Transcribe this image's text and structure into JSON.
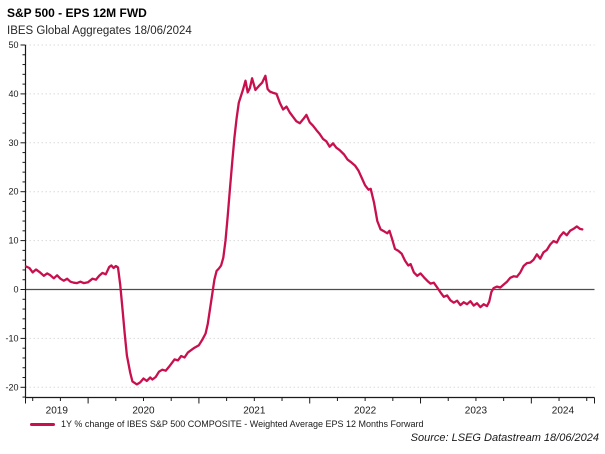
{
  "header": {
    "title": "S&P 500 - EPS 12M FWD",
    "subtitle": "IBES Global Aggregates 18/06/2024"
  },
  "legend": {
    "label": "1Y % change of IBES S&P 500 COMPOSITE - Weighted Average EPS 12 Months Forward"
  },
  "source": {
    "text": "Source: LSEG Datastream 18/06/2024"
  },
  "colors": {
    "line": "#C8104E",
    "grid": "#d9d9d9",
    "zero_line": "#4d4d4d",
    "axis": "#1a1a1a",
    "tick_text": "#1a1a1a"
  },
  "chart_data": {
    "type": "line",
    "title": "S&P 500 - EPS 12M FWD",
    "subtitle": "IBES Global Aggregates 18/06/2024",
    "grid": "horizontal-dotted",
    "legend_position": "bottom-left",
    "x_axis": {
      "domain": [
        2019.435,
        2024.57
      ],
      "year_labels": [
        "2019",
        "2020",
        "2021",
        "2022",
        "2023",
        "2024"
      ],
      "minor_tick_interval_years": 0.25
    },
    "y_axis": {
      "label_ticks": [
        50,
        40,
        30,
        20,
        10,
        0,
        -10,
        -20
      ],
      "minor_tick_interval": 2,
      "top_value": 50,
      "bottom_value": -22.1,
      "zero_line_solid": true
    },
    "series": [
      {
        "name": "1Y % change of IBES S&P 500 COMPOSITE - Weighted Average EPS 12 Months Forward",
        "color": "#C8104E",
        "points": [
          [
            2019.44,
            4.7
          ],
          [
            2019.47,
            4.4
          ],
          [
            2019.5,
            3.5
          ],
          [
            2019.53,
            4.1
          ],
          [
            2019.56,
            3.6
          ],
          [
            2019.6,
            2.8
          ],
          [
            2019.63,
            3.3
          ],
          [
            2019.66,
            2.9
          ],
          [
            2019.69,
            2.3
          ],
          [
            2019.72,
            2.9
          ],
          [
            2019.75,
            2.2
          ],
          [
            2019.78,
            1.8
          ],
          [
            2019.81,
            2.2
          ],
          [
            2019.84,
            1.6
          ],
          [
            2019.87,
            1.4
          ],
          [
            2019.9,
            1.3
          ],
          [
            2019.93,
            1.6
          ],
          [
            2019.96,
            1.3
          ],
          [
            2020.0,
            1.5
          ],
          [
            2020.04,
            2.2
          ],
          [
            2020.07,
            2.0
          ],
          [
            2020.1,
            2.8
          ],
          [
            2020.13,
            3.4
          ],
          [
            2020.16,
            3.1
          ],
          [
            2020.19,
            4.6
          ],
          [
            2020.21,
            4.9
          ],
          [
            2020.23,
            4.4
          ],
          [
            2020.25,
            4.8
          ],
          [
            2020.27,
            4.5
          ],
          [
            2020.29,
            1.0
          ],
          [
            2020.31,
            -4.0
          ],
          [
            2020.33,
            -9.0
          ],
          [
            2020.35,
            -13.5
          ],
          [
            2020.38,
            -17.0
          ],
          [
            2020.4,
            -18.8
          ],
          [
            2020.44,
            -19.4
          ],
          [
            2020.47,
            -19.0
          ],
          [
            2020.5,
            -18.2
          ],
          [
            2020.53,
            -18.7
          ],
          [
            2020.56,
            -18.0
          ],
          [
            2020.58,
            -18.4
          ],
          [
            2020.61,
            -17.9
          ],
          [
            2020.64,
            -16.8
          ],
          [
            2020.67,
            -16.4
          ],
          [
            2020.7,
            -16.6
          ],
          [
            2020.73,
            -15.8
          ],
          [
            2020.76,
            -14.9
          ],
          [
            2020.78,
            -14.3
          ],
          [
            2020.81,
            -14.5
          ],
          [
            2020.84,
            -13.6
          ],
          [
            2020.87,
            -13.9
          ],
          [
            2020.9,
            -12.9
          ],
          [
            2020.93,
            -12.4
          ],
          [
            2020.96,
            -11.9
          ],
          [
            2021.0,
            -11.4
          ],
          [
            2021.03,
            -10.3
          ],
          [
            2021.06,
            -9.0
          ],
          [
            2021.08,
            -7.0
          ],
          [
            2021.1,
            -4.0
          ],
          [
            2021.12,
            -1.0
          ],
          [
            2021.14,
            2.0
          ],
          [
            2021.16,
            3.8
          ],
          [
            2021.18,
            4.3
          ],
          [
            2021.2,
            4.9
          ],
          [
            2021.22,
            6.5
          ],
          [
            2021.24,
            10.0
          ],
          [
            2021.26,
            15.0
          ],
          [
            2021.28,
            20.5
          ],
          [
            2021.3,
            26.0
          ],
          [
            2021.32,
            31.0
          ],
          [
            2021.34,
            35.0
          ],
          [
            2021.36,
            38.2
          ],
          [
            2021.38,
            39.6
          ],
          [
            2021.4,
            41.0
          ],
          [
            2021.42,
            42.7
          ],
          [
            2021.44,
            40.3
          ],
          [
            2021.46,
            41.2
          ],
          [
            2021.48,
            43.2
          ],
          [
            2021.51,
            40.8
          ],
          [
            2021.54,
            41.6
          ],
          [
            2021.57,
            42.3
          ],
          [
            2021.6,
            43.7
          ],
          [
            2021.62,
            41.0
          ],
          [
            2021.64,
            40.5
          ],
          [
            2021.67,
            40.2
          ],
          [
            2021.7,
            40.0
          ],
          [
            2021.73,
            38.2
          ],
          [
            2021.76,
            36.8
          ],
          [
            2021.79,
            37.4
          ],
          [
            2021.82,
            36.2
          ],
          [
            2021.85,
            35.3
          ],
          [
            2021.88,
            34.4
          ],
          [
            2021.91,
            34.0
          ],
          [
            2021.94,
            34.8
          ],
          [
            2021.97,
            35.7
          ],
          [
            2022.0,
            34.2
          ],
          [
            2022.03,
            33.5
          ],
          [
            2022.06,
            32.6
          ],
          [
            2022.09,
            31.8
          ],
          [
            2022.12,
            30.8
          ],
          [
            2022.15,
            30.3
          ],
          [
            2022.18,
            29.2
          ],
          [
            2022.21,
            29.9
          ],
          [
            2022.24,
            29.0
          ],
          [
            2022.27,
            28.5
          ],
          [
            2022.31,
            27.6
          ],
          [
            2022.34,
            26.6
          ],
          [
            2022.37,
            26.1
          ],
          [
            2022.41,
            25.3
          ],
          [
            2022.44,
            24.3
          ],
          [
            2022.47,
            22.8
          ],
          [
            2022.5,
            21.3
          ],
          [
            2022.53,
            20.4
          ],
          [
            2022.55,
            20.6
          ],
          [
            2022.58,
            17.8
          ],
          [
            2022.61,
            14.0
          ],
          [
            2022.64,
            12.3
          ],
          [
            2022.67,
            11.9
          ],
          [
            2022.7,
            11.5
          ],
          [
            2022.72,
            12.0
          ],
          [
            2022.74,
            10.6
          ],
          [
            2022.77,
            8.3
          ],
          [
            2022.8,
            7.9
          ],
          [
            2022.83,
            7.3
          ],
          [
            2022.86,
            5.9
          ],
          [
            2022.89,
            4.9
          ],
          [
            2022.91,
            5.2
          ],
          [
            2022.94,
            3.5
          ],
          [
            2022.97,
            2.8
          ],
          [
            2023.0,
            3.3
          ],
          [
            2023.03,
            2.5
          ],
          [
            2023.06,
            1.8
          ],
          [
            2023.09,
            1.2
          ],
          [
            2023.12,
            1.4
          ],
          [
            2023.15,
            0.4
          ],
          [
            2023.18,
            -0.6
          ],
          [
            2023.21,
            -1.5
          ],
          [
            2023.24,
            -1.2
          ],
          [
            2023.27,
            -2.2
          ],
          [
            2023.3,
            -2.7
          ],
          [
            2023.33,
            -2.3
          ],
          [
            2023.36,
            -3.2
          ],
          [
            2023.39,
            -2.6
          ],
          [
            2023.42,
            -3.0
          ],
          [
            2023.45,
            -2.4
          ],
          [
            2023.48,
            -3.3
          ],
          [
            2023.51,
            -2.8
          ],
          [
            2023.54,
            -3.6
          ],
          [
            2023.57,
            -3.0
          ],
          [
            2023.6,
            -3.4
          ],
          [
            2023.62,
            -2.5
          ],
          [
            2023.64,
            -0.5
          ],
          [
            2023.66,
            0.3
          ],
          [
            2023.69,
            0.6
          ],
          [
            2023.72,
            0.4
          ],
          [
            2023.75,
            1.0
          ],
          [
            2023.78,
            1.6
          ],
          [
            2023.81,
            2.4
          ],
          [
            2023.84,
            2.7
          ],
          [
            2023.87,
            2.6
          ],
          [
            2023.9,
            3.5
          ],
          [
            2023.93,
            4.8
          ],
          [
            2023.96,
            5.4
          ],
          [
            2023.99,
            5.5
          ],
          [
            2024.02,
            6.1
          ],
          [
            2024.05,
            7.2
          ],
          [
            2024.08,
            6.3
          ],
          [
            2024.11,
            7.6
          ],
          [
            2024.14,
            8.1
          ],
          [
            2024.17,
            9.2
          ],
          [
            2024.2,
            9.9
          ],
          [
            2024.23,
            9.6
          ],
          [
            2024.26,
            10.9
          ],
          [
            2024.29,
            11.7
          ],
          [
            2024.32,
            11.1
          ],
          [
            2024.35,
            12.0
          ],
          [
            2024.38,
            12.4
          ],
          [
            2024.41,
            12.9
          ],
          [
            2024.44,
            12.4
          ],
          [
            2024.46,
            12.3
          ]
        ]
      }
    ]
  }
}
